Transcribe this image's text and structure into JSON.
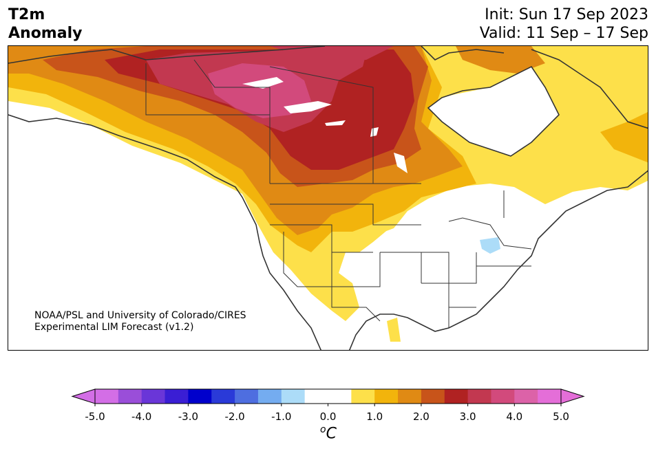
{
  "title": {
    "line1": "T2m",
    "line2": "Anomaly"
  },
  "header": {
    "init": "Init: Sun 17 Sep 2023",
    "valid": "Valid: 11 Sep – 17 Sep"
  },
  "credit": {
    "line1": "NOAA/PSL and University of Colorado/CIRES",
    "line2": "Experimental LIM Forecast (v1.2)"
  },
  "colorbar": {
    "unit_base": "C",
    "unit_super": "o",
    "tick_labels": [
      "-5.0",
      "-4.0",
      "-3.0",
      "-2.0",
      "-1.0",
      "0.0",
      "1.0",
      "2.0",
      "3.0",
      "4.0",
      "5.0"
    ],
    "extend": "both",
    "colors": [
      "#d36ee6",
      "#9a4ed9",
      "#6a36d8",
      "#3a1ed4",
      "#0000cc",
      "#2a3ad8",
      "#4e6ee0",
      "#74acf0",
      "#acdcf8",
      "#ffffff",
      "#ffffff",
      "#fde04a",
      "#f2b40c",
      "#e08a14",
      "#c8541a",
      "#b02222",
      "#c23850",
      "#d24a7c",
      "#dc62a8",
      "#e46ed8"
    ]
  },
  "legend_colors": {
    "land_base": "#ffffff",
    "anom_0_5": "#fde04a",
    "anom_1_0": "#f2b40c",
    "anom_1_5": "#e08a14",
    "anom_2_0": "#c8541a",
    "anom_2_5": "#b02222",
    "anom_3_0": "#c23850",
    "anom_3_5": "#d24a7c",
    "neg_0_5": "#acdcf8"
  }
}
